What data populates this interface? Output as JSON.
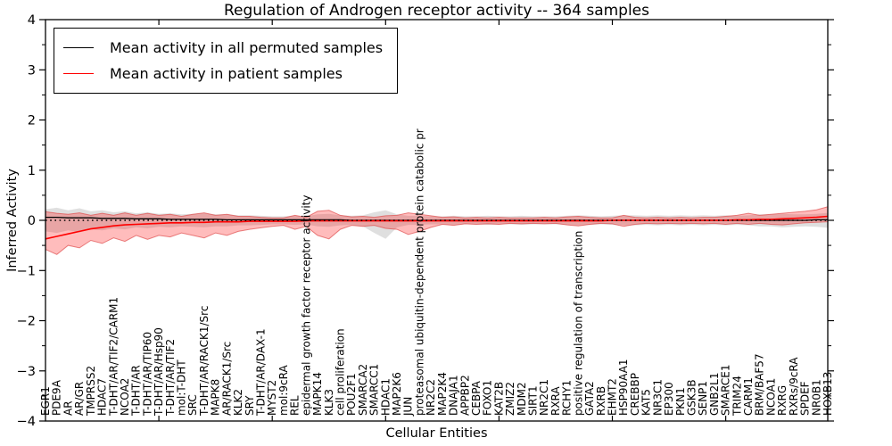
{
  "chart_data": {
    "type": "line",
    "title": "Regulation of Androgen receptor activity -- 364 samples",
    "xlabel": "Cellular Entities",
    "ylabel": "Inferred Activity",
    "ylim": [
      -4,
      4
    ],
    "yticks": [
      -4,
      -3,
      -2,
      -1,
      0,
      1,
      2,
      3,
      4
    ],
    "y_minor_step": 0.5,
    "x_major_tick_every": 10,
    "grid": false,
    "legend_position": "upper left",
    "zero_line": {
      "color": "#000000",
      "style": "dotted"
    },
    "categories": [
      "EGR1",
      "PDE9A",
      "AR",
      "AR/GR",
      "TMPRSS2",
      "HDAC7",
      "T-DHT/AR/TIF2/CARM1",
      "NCOA2",
      "T-DHT/AR",
      "T-DHT/AR/TIP60",
      "T-DHT/AR/Hsp90",
      "T-DHT/AR/TIF2",
      "mol:T-DHT",
      "SRC",
      "T-DHT/AR/RACK1/Src",
      "MAPK8",
      "AR/RACK1/Src",
      "KLK2",
      "SRY",
      "T-DHT/AR/DAX-1",
      "MYST2",
      "mol:9cRA",
      "REL",
      "epidermal growth factor receptor activity",
      "MAPK14",
      "KLK3",
      "cell proliferation",
      "POU2F1",
      "SMARCA2",
      "SMARCC1",
      "HDAC1",
      "MAP2K6",
      "JUN",
      "proteasomal ubiquitin-dependent protein catabolic pr",
      "NR2C2",
      "MAP2K4",
      "DNAJA1",
      "APPBP2",
      "CEBPA",
      "FOXO1",
      "KAT2B",
      "ZMIZ2",
      "MDM2",
      "SIRT1",
      "NR2C1",
      "RXRA",
      "RCHY1",
      "positive regulation of transcription",
      "GATA2",
      "RXRB",
      "EHMT2",
      "HSP90AA1",
      "CREBBP",
      "KAT5",
      "NR3C1",
      "EP300",
      "PKN1",
      "GSK3B",
      "SENP1",
      "GNB2L1",
      "SMARCE1",
      "TRIM24",
      "CARM1",
      "BRM/BAF57",
      "NCOA1",
      "RXRG",
      "RXRs/9cRA",
      "SPDEF",
      "NR0B1",
      "HOXB13"
    ],
    "series": [
      {
        "id": "permuted-mean",
        "name": "Mean activity in all permuted samples",
        "color": "#000000",
        "width": 1.3,
        "values": [
          0.06,
          0.06,
          0.05,
          0.05,
          0.05,
          0.04,
          0.04,
          0.04,
          0.03,
          0.03,
          0.03,
          0.02,
          0.02,
          0.02,
          0.02,
          0.02,
          0.01,
          0.01,
          0.01,
          0.01,
          0.01,
          0.01,
          0.01,
          0.01,
          0.01,
          0.01,
          0.01,
          0.0,
          0.0,
          0.0,
          0.0,
          0.0,
          0.0,
          0.0,
          0.0,
          0.0,
          0.0,
          0.0,
          0.0,
          0.0,
          0.0,
          0.0,
          0.0,
          0.0,
          0.0,
          0.0,
          0.0,
          0.0,
          0.0,
          0.0,
          0.0,
          0.0,
          0.0,
          0.0,
          0.0,
          0.0,
          0.0,
          0.0,
          0.0,
          0.0,
          0.0,
          0.0,
          0.0,
          0.0,
          0.0,
          0.0,
          0.0,
          0.0,
          0.01,
          0.01
        ]
      },
      {
        "id": "patient-mean",
        "name": "Mean activity in patient samples",
        "color": "#ff0000",
        "width": 1.6,
        "values": [
          -0.37,
          -0.32,
          -0.27,
          -0.22,
          -0.17,
          -0.14,
          -0.11,
          -0.09,
          -0.08,
          -0.07,
          -0.06,
          -0.05,
          -0.05,
          -0.04,
          -0.04,
          -0.03,
          -0.03,
          -0.03,
          -0.02,
          -0.02,
          -0.02,
          -0.02,
          -0.02,
          -0.01,
          -0.01,
          -0.01,
          -0.01,
          -0.01,
          -0.01,
          -0.01,
          -0.01,
          -0.01,
          -0.01,
          -0.01,
          -0.01,
          -0.01,
          -0.01,
          -0.01,
          -0.01,
          -0.01,
          -0.01,
          -0.01,
          -0.01,
          -0.01,
          -0.01,
          -0.01,
          -0.01,
          -0.01,
          -0.01,
          -0.01,
          0.0,
          0.0,
          0.0,
          0.0,
          0.0,
          0.0,
          0.0,
          0.0,
          0.0,
          0.0,
          0.0,
          0.01,
          0.01,
          0.02,
          0.02,
          0.03,
          0.04,
          0.05,
          0.06,
          0.08
        ]
      }
    ],
    "bands": [
      {
        "id": "permuted-range",
        "series": "Mean activity in all permuted samples",
        "color": "#9a9a9a",
        "opacity": 0.32,
        "edge": "none",
        "upper": [
          0.22,
          0.25,
          0.2,
          0.24,
          0.18,
          0.2,
          0.16,
          0.18,
          0.14,
          0.16,
          0.13,
          0.14,
          0.12,
          0.13,
          0.14,
          0.12,
          0.12,
          0.1,
          0.1,
          0.09,
          0.08,
          0.08,
          0.09,
          0.08,
          0.12,
          0.13,
          0.1,
          0.09,
          0.1,
          0.16,
          0.2,
          0.12,
          0.09,
          0.09,
          0.08,
          0.08,
          0.09,
          0.08,
          0.08,
          0.09,
          0.08,
          0.08,
          0.09,
          0.08,
          0.08,
          0.08,
          0.09,
          0.1,
          0.09,
          0.08,
          0.09,
          0.1,
          0.1,
          0.09,
          0.1,
          0.09,
          0.1,
          0.09,
          0.1,
          0.09,
          0.1,
          0.09,
          0.1,
          0.12,
          0.12,
          0.13,
          0.12,
          0.12,
          0.13,
          0.15
        ],
        "lower": [
          -0.22,
          -0.25,
          -0.2,
          -0.24,
          -0.18,
          -0.2,
          -0.16,
          -0.18,
          -0.14,
          -0.16,
          -0.13,
          -0.14,
          -0.12,
          -0.13,
          -0.14,
          -0.12,
          -0.12,
          -0.1,
          -0.1,
          -0.09,
          -0.08,
          -0.08,
          -0.09,
          -0.08,
          -0.12,
          -0.13,
          -0.1,
          -0.09,
          -0.12,
          -0.25,
          -0.37,
          -0.14,
          -0.09,
          -0.09,
          -0.08,
          -0.08,
          -0.09,
          -0.08,
          -0.08,
          -0.09,
          -0.08,
          -0.08,
          -0.09,
          -0.08,
          -0.08,
          -0.08,
          -0.09,
          -0.1,
          -0.09,
          -0.08,
          -0.09,
          -0.1,
          -0.1,
          -0.09,
          -0.1,
          -0.09,
          -0.1,
          -0.09,
          -0.1,
          -0.09,
          -0.1,
          -0.09,
          -0.1,
          -0.12,
          -0.12,
          -0.14,
          -0.13,
          -0.12,
          -0.13,
          -0.15
        ]
      },
      {
        "id": "patient-range",
        "series": "Mean activity in patient samples",
        "color": "#ff2020",
        "opacity": 0.3,
        "edge": "#dd4444",
        "upper": [
          0.17,
          0.14,
          0.12,
          0.15,
          0.1,
          0.14,
          0.1,
          0.15,
          0.1,
          0.14,
          0.1,
          0.12,
          0.08,
          0.12,
          0.15,
          0.1,
          0.12,
          0.08,
          0.08,
          0.06,
          0.05,
          0.05,
          0.1,
          0.06,
          0.18,
          0.2,
          0.1,
          0.07,
          0.08,
          0.06,
          0.09,
          0.1,
          0.15,
          0.12,
          0.09,
          0.06,
          0.07,
          0.05,
          0.06,
          0.05,
          0.06,
          0.05,
          0.05,
          0.05,
          0.06,
          0.05,
          0.07,
          0.08,
          0.06,
          0.05,
          0.05,
          0.1,
          0.06,
          0.05,
          0.06,
          0.05,
          0.06,
          0.05,
          0.06,
          0.06,
          0.08,
          0.1,
          0.14,
          0.1,
          0.12,
          0.14,
          0.16,
          0.18,
          0.21,
          0.27
        ],
        "lower": [
          -0.58,
          -0.68,
          -0.5,
          -0.55,
          -0.4,
          -0.46,
          -0.35,
          -0.42,
          -0.3,
          -0.38,
          -0.3,
          -0.33,
          -0.25,
          -0.3,
          -0.35,
          -0.25,
          -0.3,
          -0.22,
          -0.18,
          -0.15,
          -0.12,
          -0.1,
          -0.18,
          -0.12,
          -0.3,
          -0.37,
          -0.18,
          -0.1,
          -0.12,
          -0.1,
          -0.16,
          -0.18,
          -0.28,
          -0.22,
          -0.14,
          -0.08,
          -0.1,
          -0.07,
          -0.08,
          -0.07,
          -0.08,
          -0.06,
          -0.07,
          -0.06,
          -0.07,
          -0.06,
          -0.09,
          -0.11,
          -0.08,
          -0.06,
          -0.07,
          -0.12,
          -0.08,
          -0.06,
          -0.07,
          -0.06,
          -0.07,
          -0.06,
          -0.07,
          -0.06,
          -0.08,
          -0.06,
          -0.08,
          -0.06,
          -0.08,
          -0.09,
          -0.07,
          -0.05,
          -0.04,
          -0.03
        ]
      }
    ]
  }
}
